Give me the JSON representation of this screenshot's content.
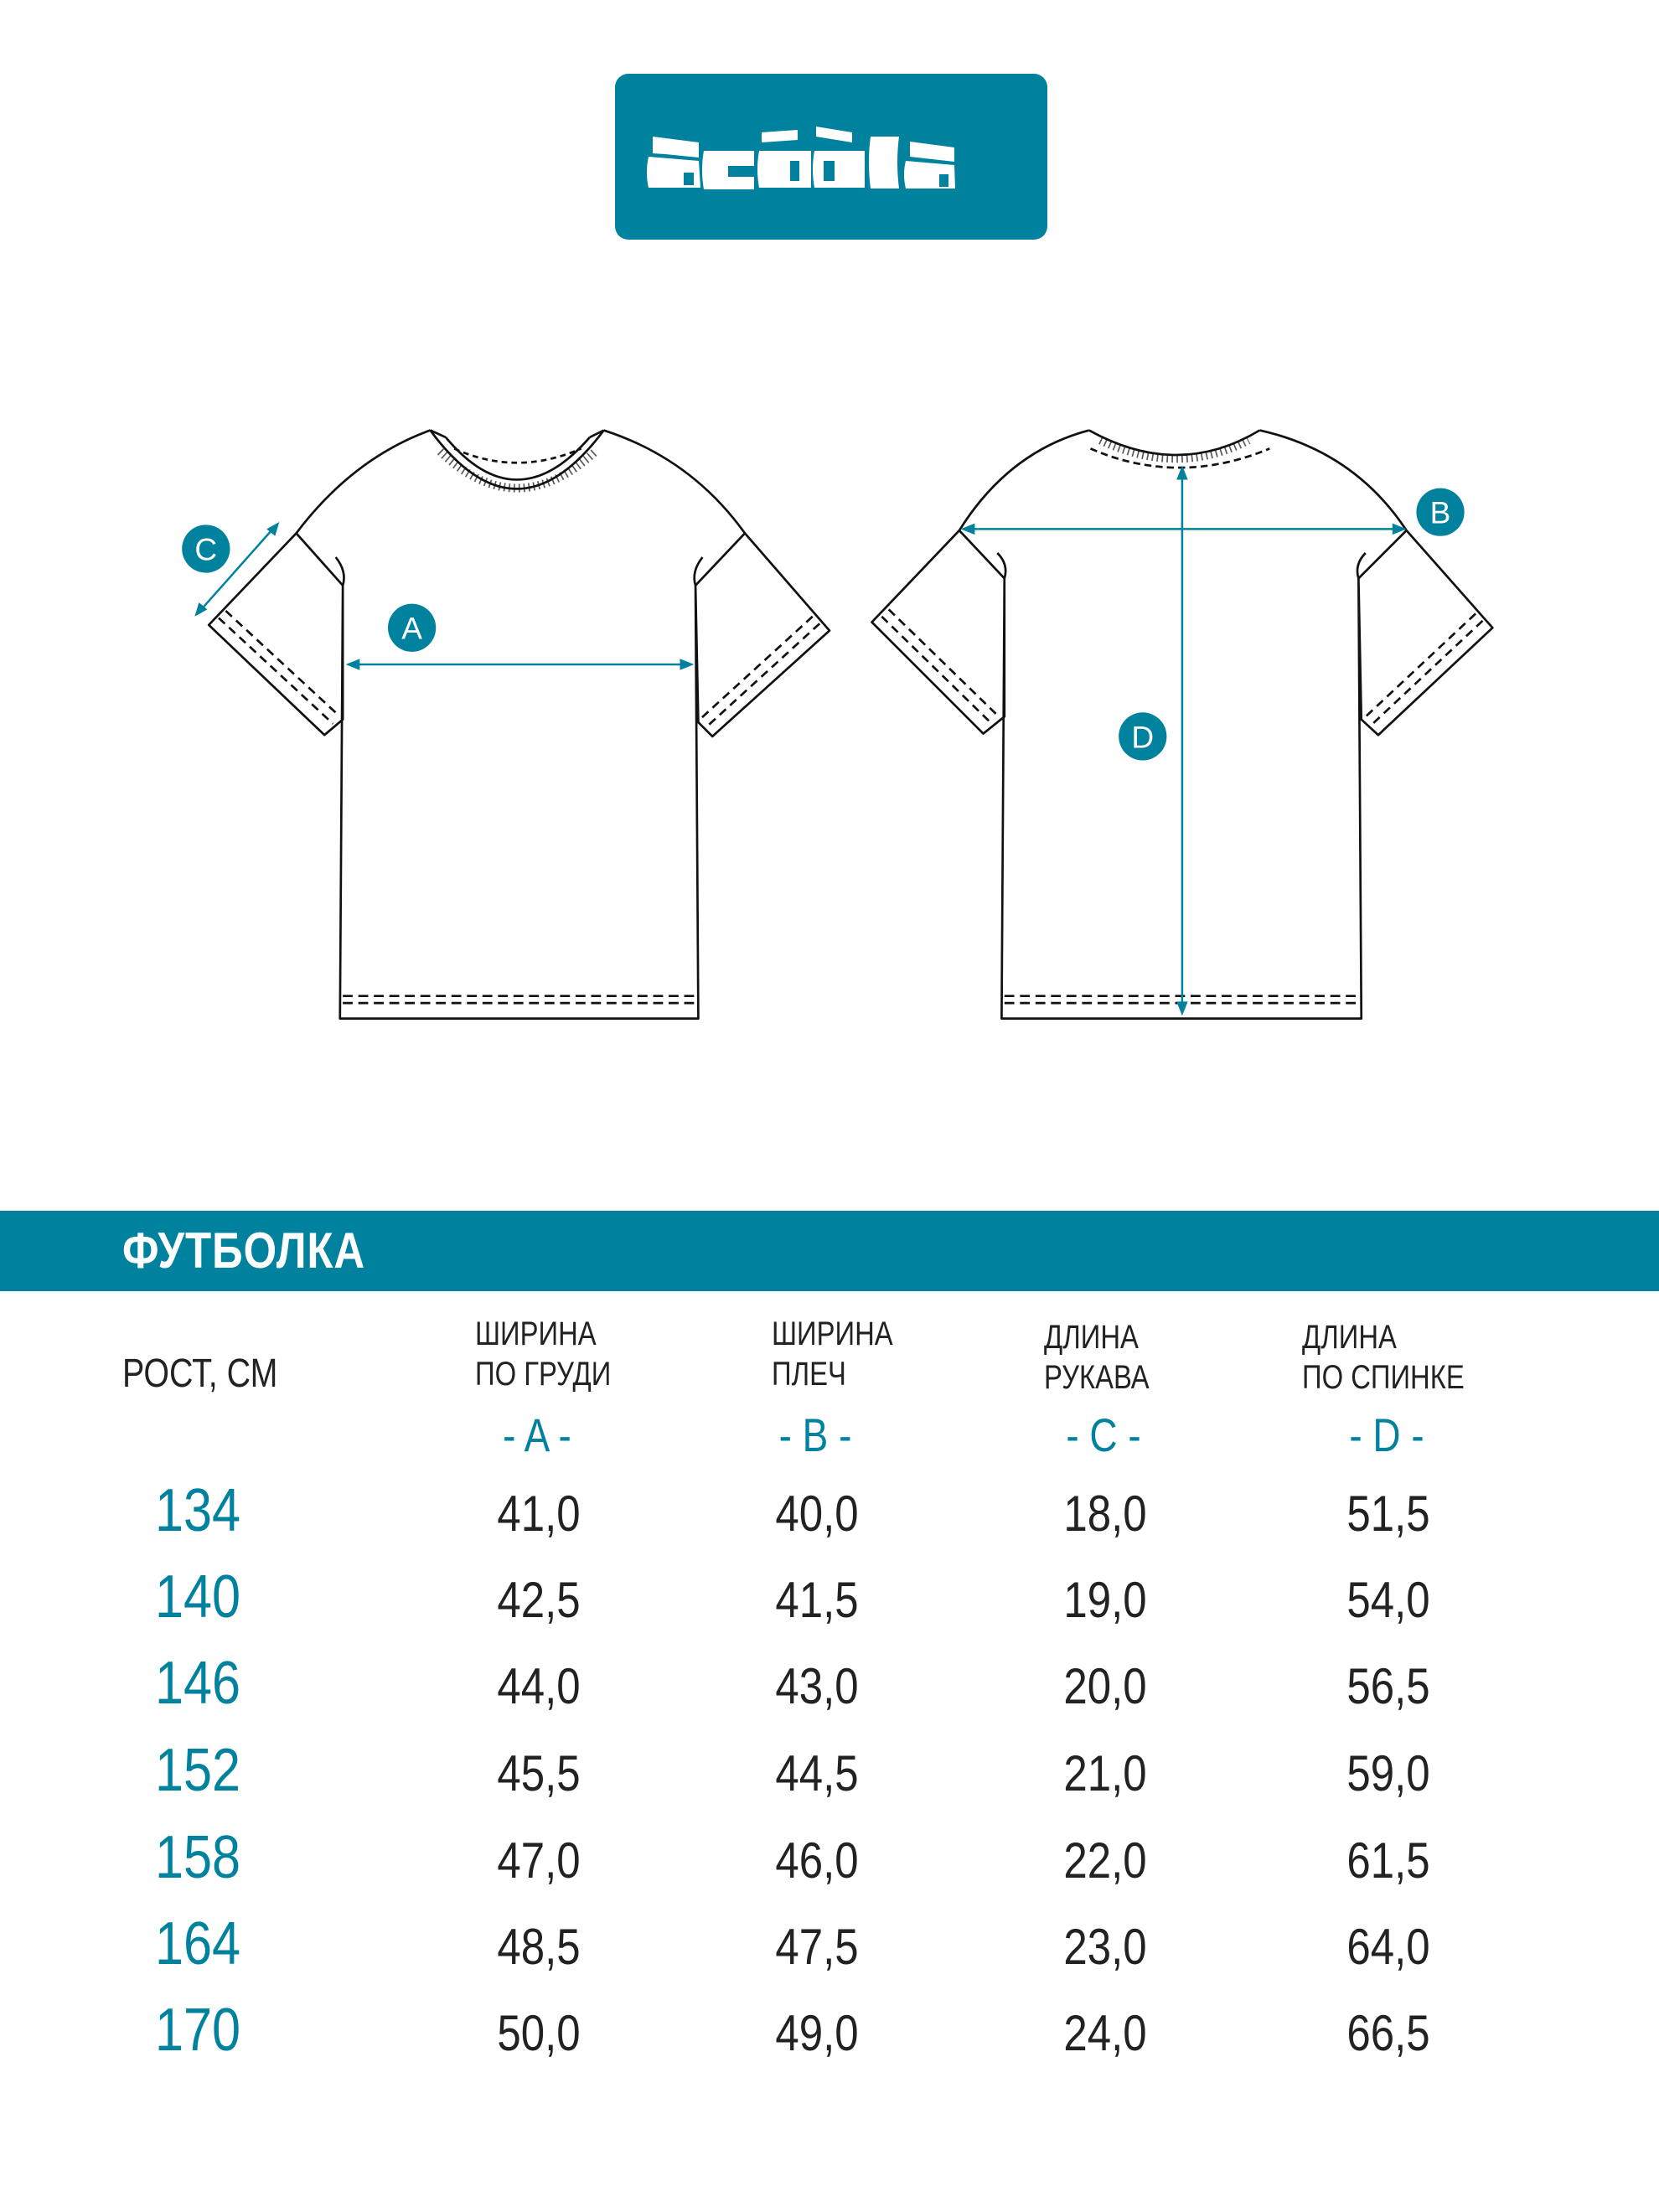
{
  "brand": {
    "logo_text": "acóòla",
    "color": "#00829e"
  },
  "diagram": {
    "markers": [
      "A",
      "B",
      "C",
      "D"
    ]
  },
  "table": {
    "title": "ФУТБОЛКА",
    "height_header": "РОСТ, СМ",
    "columns": [
      {
        "line1": "ШИРИНА",
        "line2": "ПО ГРУДИ",
        "letter": "- A -"
      },
      {
        "line1": "ШИРИНА",
        "line2": "ПЛЕЧ",
        "letter": "- B -"
      },
      {
        "line1": "ДЛИНА",
        "line2": "РУКАВА",
        "letter": "- C -"
      },
      {
        "line1": "ДЛИНА",
        "line2": "ПО СПИНКЕ",
        "letter": "- D -"
      }
    ],
    "rows": [
      {
        "height": "134",
        "values": [
          "41,0",
          "40,0",
          "18,0",
          "51,5"
        ]
      },
      {
        "height": "140",
        "values": [
          "42,5",
          "41,5",
          "19,0",
          "54,0"
        ]
      },
      {
        "height": "146",
        "values": [
          "44,0",
          "43,0",
          "20,0",
          "56,5"
        ]
      },
      {
        "height": "152",
        "values": [
          "45,5",
          "44,5",
          "21,0",
          "59,0"
        ]
      },
      {
        "height": "158",
        "values": [
          "47,0",
          "46,0",
          "22,0",
          "61,5"
        ]
      },
      {
        "height": "164",
        "values": [
          "48,5",
          "47,5",
          "23,0",
          "64,0"
        ]
      },
      {
        "height": "170",
        "values": [
          "50,0",
          "49,0",
          "24,0",
          "66,5"
        ]
      }
    ]
  }
}
